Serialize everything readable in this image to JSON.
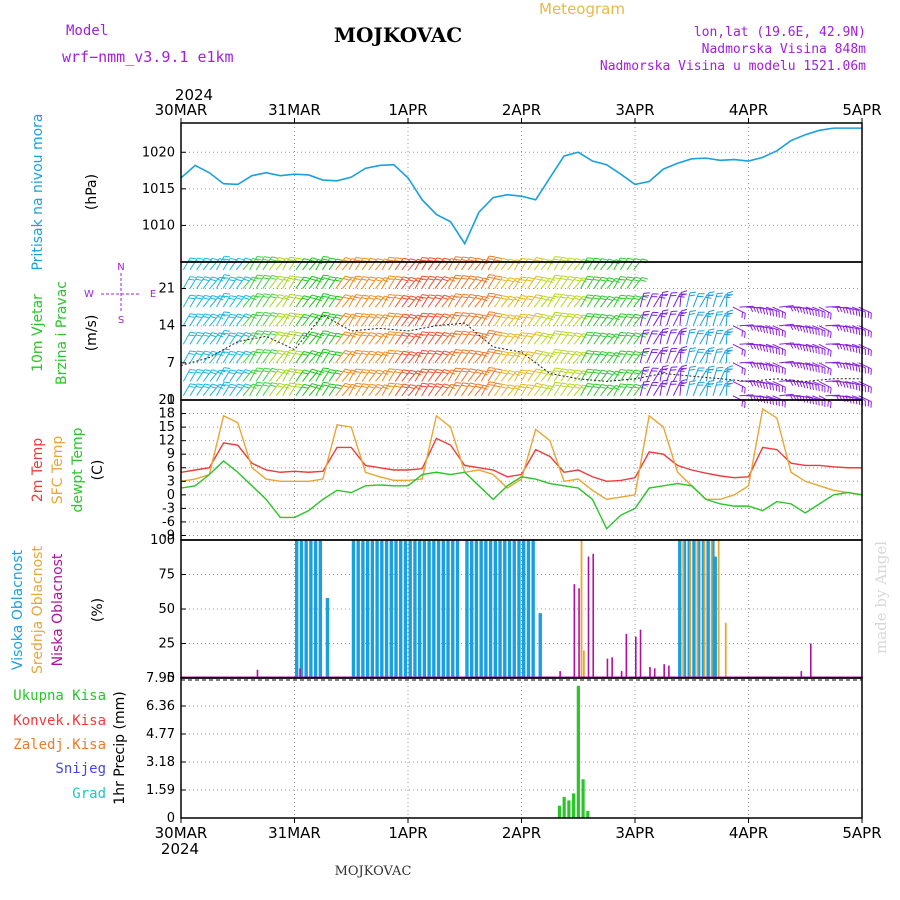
{
  "header": {
    "model_label": "Model",
    "model_name": "wrf−nmm_v3.9.1 e1km",
    "station_title": "MOJKOVAC",
    "product": "Meteogram",
    "lonlat": "lon,lat (19.6E, 42.9N)",
    "elevation": "Nadmorska Visina 848m",
    "model_elevation": "Nadmorska Visina u modelu 1521.06m",
    "top_year": "2024",
    "bottom_year": "2024",
    "footer_station": "MOJKOVAC",
    "watermark": "made by Angel"
  },
  "time_axis": {
    "start": "2024-03-30T00:00",
    "end": "2024-04-05T00:00",
    "ticks": [
      "30MAR",
      "31MAR",
      "1APR",
      "2APR",
      "3APR",
      "4APR",
      "5APR"
    ]
  },
  "colors": {
    "pressure": "#1aa0e0",
    "temp2m": "#ef3b3b",
    "sfc_temp": "#e8a735",
    "dewpoint": "#2bc42b",
    "cloud_high": "#1aa0e0",
    "cloud_mid": "#e8a735",
    "cloud_low": "#b0109e",
    "precip_total": "#2bc42b",
    "precip_conv": "#ef3b3b",
    "precip_frozen": "#f07a2a",
    "precip_snow": "#4444ee",
    "precip_hail": "#22c4c4",
    "label_purple": "#a020e0",
    "product_color": "#e8b84a"
  },
  "chart_data": [
    {
      "id": "pressure",
      "type": "line",
      "ylabel": [
        "Pritisak na nivou mora",
        "(hPa)"
      ],
      "yticks": [
        1010,
        1015,
        1020
      ],
      "ylim": [
        1005,
        1024
      ],
      "grid": true,
      "series": [
        {
          "x_hours": [
            0,
            3,
            6,
            9,
            12,
            15,
            18,
            21,
            24,
            27,
            30,
            33,
            36,
            39,
            42,
            45,
            48,
            51,
            54,
            57,
            60,
            63,
            66,
            69,
            72,
            75,
            78,
            81,
            84,
            87,
            90,
            93,
            96,
            99,
            102,
            105,
            108,
            111,
            114,
            117,
            120,
            123,
            126,
            129,
            132,
            135,
            138,
            141,
            144
          ],
          "values": [
            1016.5,
            1018.2,
            1017.2,
            1015.7,
            1015.6,
            1016.8,
            1017.2,
            1016.8,
            1017.0,
            1016.9,
            1016.2,
            1016.1,
            1016.6,
            1017.8,
            1018.2,
            1018.3,
            1016.5,
            1013.5,
            1011.5,
            1010.5,
            1007.5,
            1011.8,
            1013.8,
            1014.2,
            1014.0,
            1013.5,
            1016.5,
            1019.5,
            1020.0,
            1018.8,
            1018.3,
            1017.0,
            1015.6,
            1016.0,
            1017.7,
            1018.5,
            1019.1,
            1019.2,
            1018.9,
            1019.0,
            1018.8,
            1019.3,
            1020.2,
            1021.6,
            1022.4,
            1023.0,
            1023.3,
            1023.3,
            1023.3
          ]
        }
      ]
    },
    {
      "id": "wind",
      "type": "line",
      "ylabel": [
        "10m Vjetar",
        "Brzina i Pravac",
        "(m/s)"
      ],
      "compass": [
        "N",
        "W",
        "E",
        "S"
      ],
      "yticks": [
        0,
        7,
        14,
        21
      ],
      "ylim": [
        0,
        26
      ],
      "grid": true,
      "series": [
        {
          "name": "speed",
          "x_hours": [
            0,
            6,
            12,
            18,
            24,
            30,
            36,
            42,
            48,
            54,
            60,
            66,
            72,
            78,
            84,
            90,
            96,
            102,
            108,
            114,
            120,
            126,
            132,
            138,
            144
          ],
          "values": [
            6.5,
            8,
            11,
            12,
            9.5,
            16,
            13,
            13.5,
            13,
            14,
            14.5,
            10,
            9,
            5,
            4,
            3.5,
            4,
            5,
            4.5,
            4,
            3.5,
            4,
            3.5,
            4,
            4
          ]
        }
      ]
    },
    {
      "id": "temperature",
      "type": "line",
      "ylabel": [
        "2m Temp",
        "SFC Temp",
        "dewpt Temp",
        "(C)"
      ],
      "yticks": [
        -9,
        -6,
        -3,
        0,
        3,
        6,
        9,
        12,
        15,
        18,
        21
      ],
      "ylim": [
        -10,
        21
      ],
      "grid": true,
      "x_hours": [
        0,
        3,
        6,
        9,
        12,
        15,
        18,
        21,
        24,
        27,
        30,
        33,
        36,
        39,
        42,
        45,
        48,
        51,
        54,
        57,
        60,
        63,
        66,
        69,
        72,
        75,
        78,
        81,
        84,
        87,
        90,
        93,
        96,
        99,
        102,
        105,
        108,
        111,
        114,
        117,
        120,
        123,
        126,
        129,
        132,
        135,
        138,
        141,
        144
      ],
      "series": [
        {
          "name": "2m Temp",
          "values": [
            5,
            5.5,
            6,
            11.5,
            11,
            7,
            5.5,
            5,
            5.2,
            5,
            5.2,
            10.5,
            10.5,
            6.5,
            6,
            5.5,
            5.5,
            5.8,
            12.5,
            11,
            6.5,
            6,
            5.5,
            4,
            4.5,
            10,
            8.5,
            5,
            5.5,
            4,
            3,
            3.2,
            3.8,
            9.5,
            9,
            6.5,
            5.5,
            4.8,
            4.2,
            3.8,
            4,
            10.5,
            10,
            7,
            6.5,
            6.5,
            6.2,
            6,
            6
          ]
        },
        {
          "name": "SFC Temp",
          "values": [
            3,
            3.5,
            4.5,
            17.5,
            16,
            6,
            3.5,
            3,
            3,
            3,
            3.5,
            15.5,
            15,
            5,
            4,
            3.2,
            3.2,
            3.5,
            17.5,
            15,
            5,
            5.5,
            4.5,
            1.5,
            3.5,
            14.5,
            12,
            3,
            3.5,
            1,
            -1,
            -0.5,
            0,
            17.5,
            15,
            5,
            2,
            -1,
            -1,
            0,
            2,
            19,
            17,
            5,
            3,
            2,
            1,
            0.5,
            0
          ]
        },
        {
          "name": "dewpt Temp",
          "values": [
            1.5,
            2,
            4.5,
            7.5,
            5,
            2,
            -1,
            -5,
            -5,
            -3.5,
            -1,
            1,
            0.5,
            2,
            2.2,
            2,
            2,
            4.5,
            5,
            4.5,
            5,
            2,
            -1,
            2,
            4,
            3.5,
            2.5,
            2,
            1.5,
            -1,
            -7.5,
            -4.5,
            -3,
            1.5,
            2,
            2.5,
            2,
            -1,
            -2,
            -2.5,
            -2.5,
            -3.5,
            -1.5,
            -2,
            -4,
            -2,
            0,
            0.5,
            0
          ]
        }
      ]
    },
    {
      "id": "clouds",
      "type": "bar",
      "ylabel": [
        "Visoka Oblacnost",
        "Srednja Oblacnost",
        "Niska Oblacnost",
        "(%)"
      ],
      "yticks": [
        0,
        25,
        50,
        75,
        100
      ],
      "ylim": [
        0,
        100
      ],
      "grid": true,
      "series": [
        {
          "name": "Visoka Oblacnost",
          "ranges": [
            {
              "from_hours": 24,
              "to_hours": 30,
              "value": 100
            },
            {
              "from_hours": 36,
              "to_hours": 58,
              "value": 100
            },
            {
              "from_hours": 58,
              "to_hours": 59,
              "value": 100
            },
            {
              "from_hours": 60,
              "to_hours": 74,
              "value": 100
            },
            {
              "from_hours": 74,
              "to_hours": 75,
              "value": 100
            },
            {
              "from_hours": 105,
              "to_hours": 113,
              "value": 100
            }
          ],
          "points": [
            {
              "x_hours": 30.5,
              "value": 58
            },
            {
              "x_hours": 75.5,
              "value": 47
            },
            {
              "x_hours": 112.5,
              "value": 88
            }
          ]
        },
        {
          "name": "Srednja Oblacnost",
          "points": [
            {
              "x_hours": 84.5,
              "value": 100
            },
            {
              "x_hours": 85,
              "value": 20
            },
            {
              "x_hours": 106,
              "value": 100
            },
            {
              "x_hours": 107.5,
              "value": 100
            },
            {
              "x_hours": 109,
              "value": 100
            },
            {
              "x_hours": 110.5,
              "value": 100
            },
            {
              "x_hours": 112,
              "value": 100
            },
            {
              "x_hours": 113.5,
              "value": 100
            },
            {
              "x_hours": 115,
              "value": 40
            }
          ]
        },
        {
          "name": "Niska Oblacnost",
          "points": [
            {
              "x_hours": 16,
              "value": 6
            },
            {
              "x_hours": 25,
              "value": 7
            },
            {
              "x_hours": 80,
              "value": 5
            },
            {
              "x_hours": 83,
              "value": 68
            },
            {
              "x_hours": 84,
              "value": 65
            },
            {
              "x_hours": 86,
              "value": 88
            },
            {
              "x_hours": 87,
              "value": 90
            },
            {
              "x_hours": 90,
              "value": 14
            },
            {
              "x_hours": 91,
              "value": 15
            },
            {
              "x_hours": 93,
              "value": 5
            },
            {
              "x_hours": 94,
              "value": 32
            },
            {
              "x_hours": 96,
              "value": 30
            },
            {
              "x_hours": 97,
              "value": 35
            },
            {
              "x_hours": 99,
              "value": 8
            },
            {
              "x_hours": 100,
              "value": 7
            },
            {
              "x_hours": 102,
              "value": 10
            },
            {
              "x_hours": 103,
              "value": 9
            },
            {
              "x_hours": 131,
              "value": 5
            },
            {
              "x_hours": 133,
              "value": 25
            }
          ]
        }
      ]
    },
    {
      "id": "precip",
      "type": "bar",
      "ylabel": [
        "1hr Precip (mm)"
      ],
      "legend": [
        "Ukupna Kisa",
        "Konvek.Kisa",
        "Zaledj.Kisa",
        "Snijeg",
        "Grad"
      ],
      "yticks": [
        0,
        1.59,
        3.18,
        4.77,
        6.36,
        7.95
      ],
      "ylim": [
        0,
        7.95
      ],
      "grid": true,
      "series": [
        {
          "name": "Ukupna Kisa",
          "x_hours": [
            80,
            81,
            82,
            83,
            84,
            85,
            86
          ],
          "values": [
            0.7,
            1.2,
            1.0,
            1.4,
            7.5,
            2.2,
            0.4
          ]
        }
      ]
    }
  ]
}
